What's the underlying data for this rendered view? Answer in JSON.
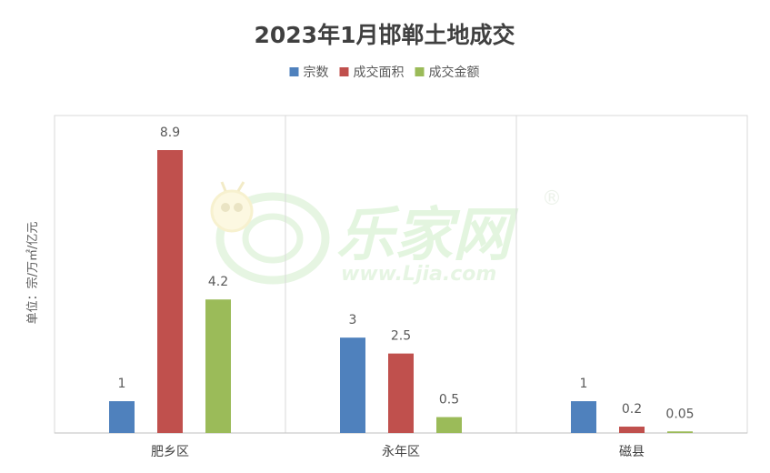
{
  "chart_data": {
    "type": "bar",
    "title": "2023年1月邯郸土地成交",
    "ylabel": "单位：宗/万㎡/亿元",
    "xlabel": "",
    "categories": [
      "肥乡区",
      "永年区",
      "磁县"
    ],
    "series": [
      {
        "name": "宗数",
        "color": "#4F81BD",
        "values": [
          1,
          3,
          1
        ],
        "labels": [
          "1",
          "3",
          "1"
        ]
      },
      {
        "name": "成交面积",
        "color": "#C0504D",
        "values": [
          8.9,
          2.5,
          0.2
        ],
        "labels": [
          "8.9",
          "2.5",
          "0.2"
        ]
      },
      {
        "name": "成交金额",
        "color": "#9BBB59",
        "values": [
          4.2,
          0.5,
          0.05
        ],
        "labels": [
          "4.2",
          "0.5",
          "0.05"
        ]
      }
    ],
    "ylim": [
      0,
      8.9
    ],
    "grid": "vertical category separators",
    "legend": "top-center"
  },
  "watermark": {
    "text": "乐家网",
    "url": "www.Ljia.com",
    "mark": "®",
    "color": "#c8ecc2"
  }
}
